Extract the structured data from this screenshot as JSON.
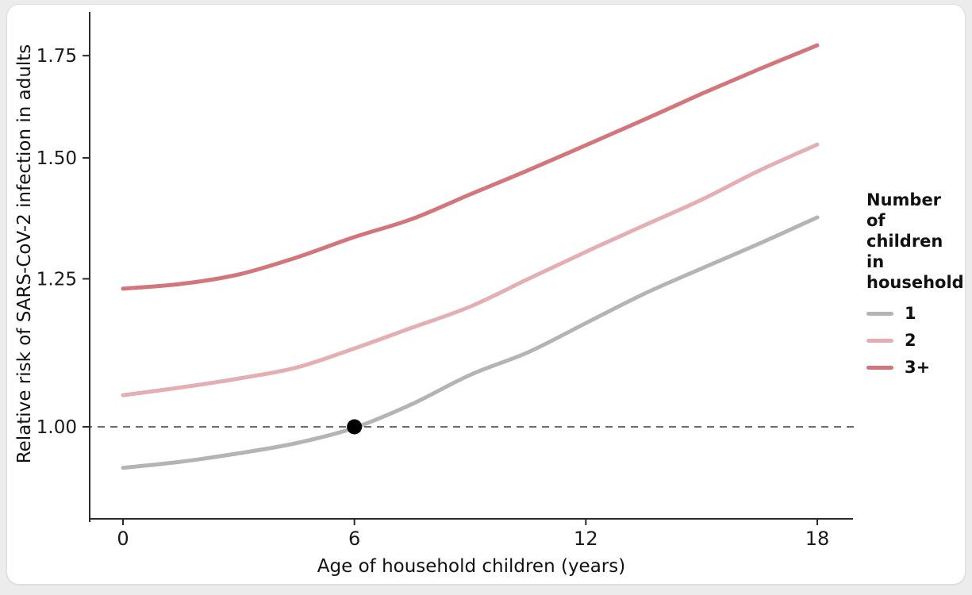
{
  "figure": {
    "page_background": "#ececec",
    "card_background": "#ffffff",
    "card_border_color": "#dddddd",
    "axis_color": "#2b2b2b",
    "text_color": "#1a1a1a",
    "reference_line_color": "#3a3a3a",
    "reference_point_color": "#000000"
  },
  "chart_data": {
    "type": "line",
    "title": "",
    "xlabel": "Age of household children (years)",
    "ylabel": "Relative risk of SARS-CoV-2 infection in adults",
    "x": [
      0,
      1.5,
      3,
      4.5,
      6,
      7.5,
      9,
      10.5,
      12,
      13.5,
      15,
      16.5,
      18
    ],
    "series": [
      {
        "name": "1",
        "color": "#b4b4b4",
        "values": [
          0.94,
          0.95,
          0.96,
          0.975,
          1.0,
          1.035,
          1.08,
          1.12,
          1.17,
          1.22,
          1.27,
          1.32,
          1.37
        ]
      },
      {
        "name": "2",
        "color": "#e3afb2",
        "values": [
          1.05,
          1.06,
          1.075,
          1.095,
          1.125,
          1.16,
          1.2,
          1.25,
          1.3,
          1.355,
          1.41,
          1.47,
          1.53
        ]
      },
      {
        "name": "3+",
        "color": "#d3767b",
        "values": [
          1.23,
          1.24,
          1.26,
          1.29,
          1.33,
          1.37,
          1.42,
          1.47,
          1.53,
          1.59,
          1.65,
          1.715,
          1.78
        ]
      }
    ],
    "xticks": [
      0,
      6,
      12,
      18
    ],
    "xtick_labels": [
      "0",
      "6",
      "12",
      "18"
    ],
    "yticks": [
      1.0,
      1.25,
      1.5,
      1.75
    ],
    "ytick_labels": [
      "1.00",
      "1.25",
      "1.50",
      "1.75"
    ],
    "xlim": [
      0,
      18
    ],
    "ylim": [
      0.88,
      1.82
    ],
    "y_scale": "log",
    "grid": false,
    "reference_line": {
      "y": 1.0,
      "style": "dashed"
    },
    "reference_point": {
      "x": 6,
      "y": 1.0
    },
    "legend": {
      "title": "Number of children in household",
      "position": "right",
      "items": [
        "1",
        "2",
        "3+"
      ]
    }
  }
}
